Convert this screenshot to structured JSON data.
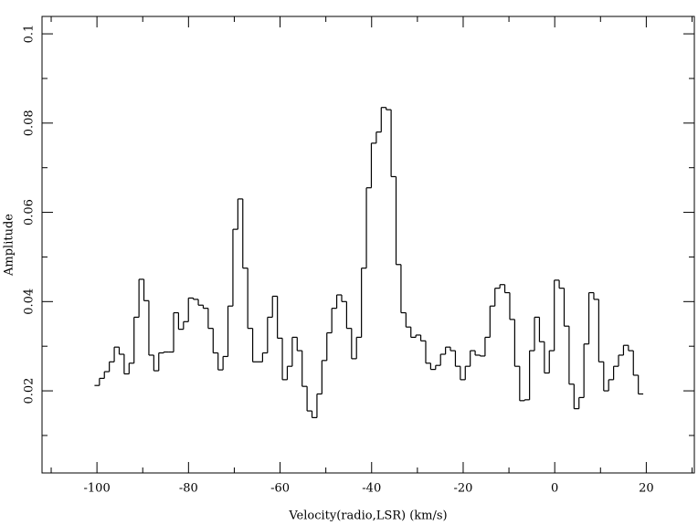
{
  "chart_data": {
    "type": "step",
    "xlabel": "Velocity(radio,LSR) (km/s)",
    "ylabel": "Amplitude",
    "color": "#000000",
    "xlim": [
      -112,
      30.5
    ],
    "ylim": [
      0.0016,
      0.1039
    ],
    "xticks": [
      -100,
      -80,
      -60,
      -40,
      -20,
      0,
      20
    ],
    "xminorticks": [
      -110,
      -90,
      -70,
      -50,
      -30,
      -10,
      10,
      30
    ],
    "yticks": [
      0.02,
      0.04,
      0.06,
      0.08,
      0.1
    ],
    "yminorticks": [
      0.01,
      0.03,
      0.05,
      0.07,
      0.09
    ],
    "x": [
      -100,
      -98.92,
      -97.84,
      -96.76,
      -95.68,
      -94.6,
      -93.52,
      -92.44,
      -91.36,
      -90.28,
      -89.2,
      -88.12,
      -87.04,
      -85.96,
      -84.88,
      -83.8,
      -82.72,
      -81.64,
      -80.56,
      -79.48,
      -78.4,
      -77.32,
      -76.24,
      -75.16,
      -74.08,
      -73,
      -71.92,
      -70.84,
      -69.76,
      -68.68,
      -67.6,
      -66.52,
      -65.44,
      -64.36,
      -63.28,
      -62.2,
      -61.12,
      -60.04,
      -58.96,
      -57.88,
      -56.8,
      -55.72,
      -54.64,
      -53.56,
      -52.48,
      -51.4,
      -50.32,
      -49.24,
      -48.16,
      -47.08,
      -46,
      -44.92,
      -43.84,
      -42.76,
      -41.68,
      -40.6,
      -39.52,
      -38.44,
      -37.36,
      -36.28,
      -35.2,
      -34.12,
      -33.04,
      -31.96,
      -30.88,
      -29.8,
      -28.72,
      -27.64,
      -26.56,
      -25.48,
      -24.4,
      -23.32,
      -22.24,
      -21.16,
      -20.08,
      -19,
      -17.92,
      -16.84,
      -15.76,
      -14.68,
      -13.6,
      -12.52,
      -11.44,
      -10.36,
      -9.28,
      -8.2,
      -7.12,
      -6.04,
      -4.96,
      -3.88,
      -2.8,
      -1.72,
      -0.64,
      0.44,
      1.52,
      2.6,
      3.68,
      4.76,
      5.84,
      6.92,
      8,
      9.08,
      10.16,
      11.24,
      12.32,
      13.4,
      14.48,
      15.56,
      16.64,
      17.72,
      18.8
    ],
    "values": [
      0.0212,
      0.0228,
      0.0243,
      0.0265,
      0.0298,
      0.0282,
      0.0238,
      0.0262,
      0.0365,
      0.045,
      0.0402,
      0.028,
      0.0245,
      0.0285,
      0.0287,
      0.0287,
      0.0375,
      0.0338,
      0.0355,
      0.0408,
      0.0405,
      0.0392,
      0.0385,
      0.034,
      0.0285,
      0.0247,
      0.0277,
      0.039,
      0.0562,
      0.063,
      0.0475,
      0.034,
      0.0265,
      0.0265,
      0.0285,
      0.0365,
      0.0412,
      0.0318,
      0.0225,
      0.0255,
      0.032,
      0.029,
      0.021,
      0.0155,
      0.014,
      0.0193,
      0.0268,
      0.033,
      0.0385,
      0.0415,
      0.04,
      0.034,
      0.0272,
      0.032,
      0.0475,
      0.0655,
      0.0755,
      0.078,
      0.0835,
      0.083,
      0.068,
      0.0483,
      0.0375,
      0.0343,
      0.032,
      0.0325,
      0.0312,
      0.0262,
      0.0248,
      0.0257,
      0.0282,
      0.0298,
      0.029,
      0.0255,
      0.0225,
      0.0255,
      0.029,
      0.028,
      0.0278,
      0.032,
      0.039,
      0.043,
      0.0438,
      0.042,
      0.036,
      0.0255,
      0.0178,
      0.018,
      0.029,
      0.0365,
      0.031,
      0.024,
      0.029,
      0.0448,
      0.043,
      0.0345,
      0.0215,
      0.016,
      0.0185,
      0.0305,
      0.042,
      0.0405,
      0.0265,
      0.02,
      0.0225,
      0.0255,
      0.028,
      0.0302,
      0.029,
      0.0235,
      0.0193
    ]
  }
}
